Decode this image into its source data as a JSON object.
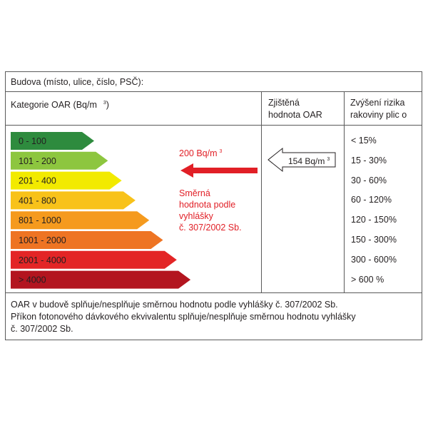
{
  "header": {
    "building_label": "Budova (místo, ulice, číslo, PSČ):",
    "category_label": "Kategorie OAR (Bq/m",
    "category_sup": "3",
    "category_close": ")",
    "measured_label": [
      "Zjištěná",
      "hodnota OAR"
    ],
    "risk_label": [
      "Zvýšení rizika",
      "rakoviny plic o"
    ]
  },
  "categories": [
    {
      "label": "0 - 100",
      "color": "#2e8b3e",
      "risk": "< 15%"
    },
    {
      "label": "101 - 200",
      "color": "#8dc63f",
      "risk": "15 - 30%"
    },
    {
      "label": "201 - 400",
      "color": "#f2ea00",
      "risk": "30 - 60%"
    },
    {
      "label": "401 - 800",
      "color": "#f8c21a",
      "risk": "60 - 120%"
    },
    {
      "label": "801 - 1000",
      "color": "#f59a1e",
      "risk": "120 - 150%"
    },
    {
      "label": "1001 - 2000",
      "color": "#ee7423",
      "risk": "150 - 300%"
    },
    {
      "label": "2001 - 4000",
      "color": "#e32526",
      "risk": "300 - 600%"
    },
    {
      "label": "> 4000",
      "color": "#b3151f",
      "risk": "> 600 %"
    }
  ],
  "reference": {
    "value": "200 Bq/m",
    "value_sup": "3",
    "note": [
      "Směrná",
      "hodnota podle",
      "vyhlášky",
      "č. 307/2002 Sb."
    ],
    "color": "#e11f26"
  },
  "measured": {
    "value": "154 Bq/m",
    "value_sup": "3"
  },
  "footer": [
    "OAR v budově splňuje/nesplňuje směrnou hodnotu podle vyhlášky č. 307/2002 Sb.",
    "Příkon fotonového dávkového ekvivalentu splňuje/nesplňuje směrnou hodnotu vyhlášky",
    "č. 307/2002 Sb."
  ]
}
